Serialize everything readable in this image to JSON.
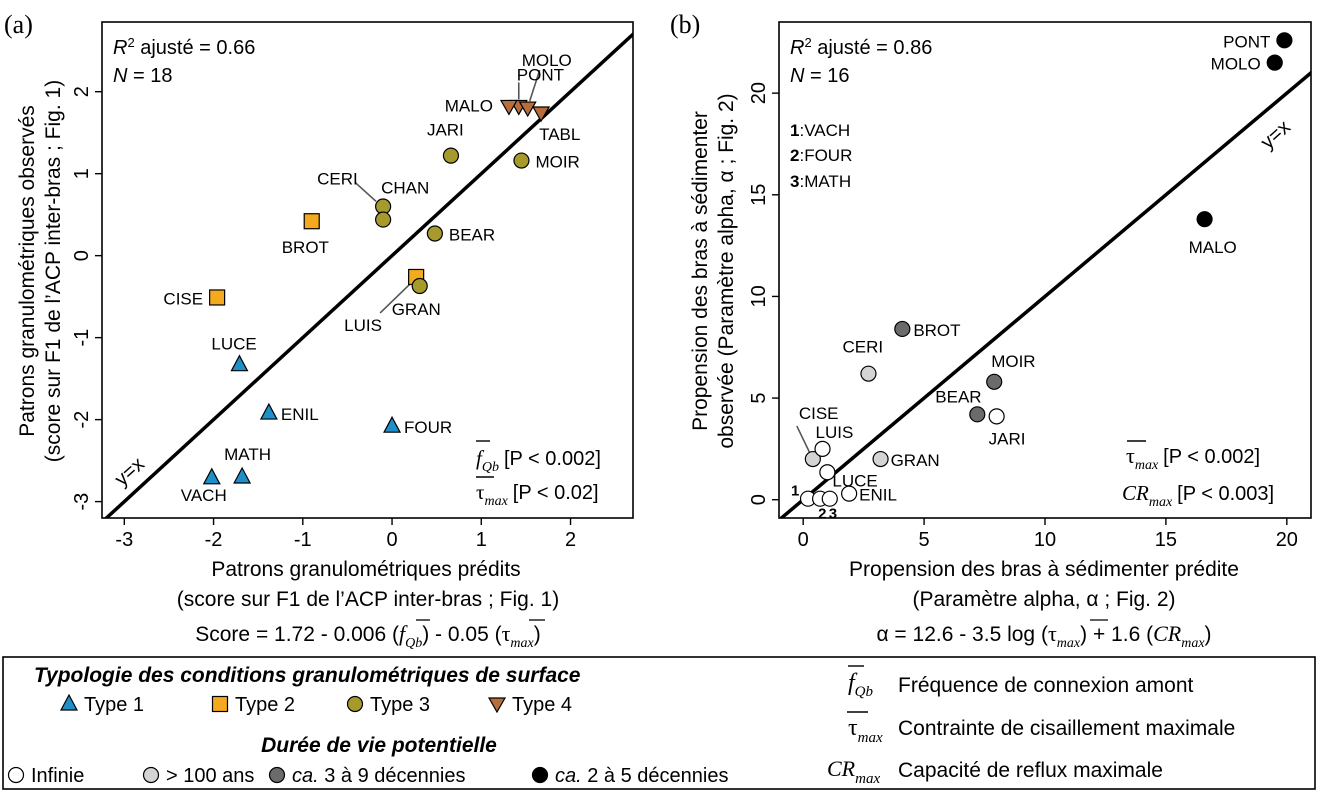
{
  "colors": {
    "type1": "#1f8fc8",
    "type2": "#f4aa1f",
    "type3": "#a69a2c",
    "type4": "#b76e3c",
    "infinite": "#ffffff",
    "over100": "#d4d4d4",
    "decades3to9": "#6b6b6b",
    "decades2to5": "#000000",
    "stroke": "#000000"
  },
  "chart_data": [
    {
      "type": "scatter",
      "panel_label": "(a)",
      "stats": {
        "r2_label": "R",
        "r2_sup": "2",
        "r2_text": " ajusté = 0.66",
        "n_label": "N",
        "n_text": " = 18"
      },
      "identity_label": "y=x",
      "xlabel": "Patrons granulométriques prédits",
      "xlabel2": "(score sur F1 de l’ACP inter-bras ; Fig. 1)",
      "equation": {
        "p1": "Score = 1.72 - 0.006 (",
        "f": "f",
        "f_sub": "Qb",
        "p2": ") - 0.05 (",
        "tau": "τ",
        "tau_sub": "max",
        "p3": ")"
      },
      "ylabel": "Patrons granulométriques observés",
      "ylabel2": "(score sur F1 de l’ACP inter-bras ; Fig. 1)",
      "xlim": [
        -3.25,
        2.7
      ],
      "ylim": [
        -3.2,
        2.85
      ],
      "xticks": [
        "-3",
        "-2",
        "-1",
        "0",
        "1",
        "2"
      ],
      "yticks": [
        "-3",
        "-2",
        "-1",
        "0",
        "1",
        "2"
      ],
      "significance": [
        {
          "sym": "f",
          "sub": "Qb",
          "text": "[P < 0.002]"
        },
        {
          "sym": "τ",
          "sub": "max",
          "text": "[P < 0.02]"
        }
      ],
      "points": [
        {
          "label": "PONT",
          "x": 1.42,
          "y": 1.82,
          "group": "type4"
        },
        {
          "label": "MOLO",
          "x": 1.52,
          "y": 1.8,
          "group": "type4"
        },
        {
          "label": "MALO",
          "x": 1.31,
          "y": 1.82,
          "group": "type4"
        },
        {
          "label": "TABL",
          "x": 1.67,
          "y": 1.74,
          "group": "type4"
        },
        {
          "label": "JARI",
          "x": 0.66,
          "y": 1.22,
          "group": "type3"
        },
        {
          "label": "MOIR",
          "x": 1.45,
          "y": 1.16,
          "group": "type3"
        },
        {
          "label": "CERI",
          "x": -0.1,
          "y": 0.6,
          "group": "type3"
        },
        {
          "label": "CHAN",
          "x": -0.1,
          "y": 0.44,
          "group": "type3"
        },
        {
          "label": "BROT",
          "x": -0.9,
          "y": 0.42,
          "group": "type2"
        },
        {
          "label": "BEAR",
          "x": 0.48,
          "y": 0.27,
          "group": "type3"
        },
        {
          "label": "LUIS",
          "x": 0.27,
          "y": -0.26,
          "group": "type2"
        },
        {
          "label": "GRAN",
          "x": 0.31,
          "y": -0.37,
          "group": "type3"
        },
        {
          "label": "CISE",
          "x": -1.96,
          "y": -0.51,
          "group": "type2"
        },
        {
          "label": "LUCE",
          "x": -1.71,
          "y": -1.33,
          "group": "type1"
        },
        {
          "label": "ENIL",
          "x": -1.38,
          "y": -1.92,
          "group": "type1"
        },
        {
          "label": "FOUR",
          "x": 0.0,
          "y": -2.08,
          "group": "type1"
        },
        {
          "label": "MATH",
          "x": -1.68,
          "y": -2.7,
          "group": "type1"
        },
        {
          "label": "VACH",
          "x": -2.02,
          "y": -2.71,
          "group": "type1"
        }
      ]
    },
    {
      "type": "scatter",
      "panel_label": "(b)",
      "stats": {
        "r2_label": "R",
        "r2_sup": "2",
        "r2_text": " ajusté = 0.86",
        "n_label": "N",
        "n_text": " = 16"
      },
      "identity_label": "y=x",
      "key": [
        {
          "num": "1",
          "text": ":VACH"
        },
        {
          "num": "2",
          "text": ":FOUR"
        },
        {
          "num": "3",
          "text": ":MATH"
        }
      ],
      "xlabel": "Propension des bras à sédimenter prédite",
      "xlabel2": "(Paramètre alpha, α ; Fig. 2)",
      "equation": {
        "p1": "α = 12.6 - 3.5 log (",
        "tau": "τ",
        "tau_sub": "max",
        "p2": ") + 1.6 (",
        "cr": "CR",
        "cr_sub": "max",
        "p3": ")"
      },
      "ylabel": "Propension des bras à sédimenter",
      "ylabel2": "observée (Paramètre alpha, α ; Fig. 2)",
      "xlim": [
        -1,
        21
      ],
      "ylim": [
        -0.9,
        23.5
      ],
      "xticks": [
        "0",
        "5",
        "10",
        "15",
        "20"
      ],
      "yticks": [
        "0",
        "5",
        "10",
        "15",
        "20"
      ],
      "significance": [
        {
          "sym": "τ",
          "sub": "max",
          "text": "[P < 0.002]"
        },
        {
          "sym": "CR",
          "sub": "max",
          "text": "[P < 0.003]"
        }
      ],
      "points": [
        {
          "label": "PONT",
          "x": 19.9,
          "y": 22.6,
          "group": "decades2to5"
        },
        {
          "label": "MOLO",
          "x": 19.5,
          "y": 21.5,
          "group": "decades2to5"
        },
        {
          "label": "MALO",
          "x": 16.6,
          "y": 13.8,
          "group": "decades2to5"
        },
        {
          "label": "BROT",
          "x": 4.1,
          "y": 8.4,
          "group": "decades3to9"
        },
        {
          "label": "MOIR",
          "x": 7.9,
          "y": 5.8,
          "group": "decades3to9"
        },
        {
          "label": "BEAR",
          "x": 7.2,
          "y": 4.2,
          "group": "decades3to9"
        },
        {
          "label": "JARI",
          "x": 8.0,
          "y": 4.1,
          "group": "infinite"
        },
        {
          "label": "CERI",
          "x": 2.7,
          "y": 6.2,
          "group": "over100"
        },
        {
          "label": "GRAN",
          "x": 3.2,
          "y": 2.0,
          "group": "over100"
        },
        {
          "label": "CISE",
          "x": 0.4,
          "y": 2.0,
          "group": "over100"
        },
        {
          "label": "LUIS",
          "x": 0.8,
          "y": 2.5,
          "group": "infinite"
        },
        {
          "label": "LUCE",
          "x": 1.0,
          "y": 1.35,
          "group": "infinite"
        },
        {
          "label": "ENIL",
          "x": 1.9,
          "y": 0.3,
          "group": "infinite"
        },
        {
          "label": "1",
          "x": 0.2,
          "y": 0.05,
          "group": "infinite"
        },
        {
          "label": "2",
          "x": 0.7,
          "y": 0.05,
          "group": "infinite"
        },
        {
          "label": "3",
          "x": 1.1,
          "y": 0.05,
          "group": "infinite"
        }
      ]
    }
  ],
  "legend": {
    "typology_title": "Typologie des conditions granulométriques de surface",
    "types": [
      {
        "label": "Type 1",
        "group": "type1"
      },
      {
        "label": "Type 2",
        "group": "type2"
      },
      {
        "label": "Type 3",
        "group": "type3"
      },
      {
        "label": "Type 4",
        "group": "type4"
      }
    ],
    "lifespan_title": "Durée de vie potentielle",
    "lifespans": [
      {
        "pre": "",
        "label": "Infinie",
        "group": "infinite"
      },
      {
        "pre": "",
        "label": "> 100 ans",
        "group": "over100"
      },
      {
        "pre": "ca.",
        "label": " 3 à 9 décennies",
        "group": "decades3to9"
      },
      {
        "pre": "ca.",
        "label": " 2 à 5 décennies",
        "group": "decades2to5"
      }
    ],
    "definitions": [
      {
        "sym": "f",
        "sub": "Qb",
        "text": "Fréquence de connexion amont"
      },
      {
        "sym": "τ",
        "sub": "max",
        "text": "Contrainte de cisaillement maximale"
      },
      {
        "sym": "CR",
        "sub": "max",
        "text": "Capacité de reflux maximale"
      }
    ]
  }
}
